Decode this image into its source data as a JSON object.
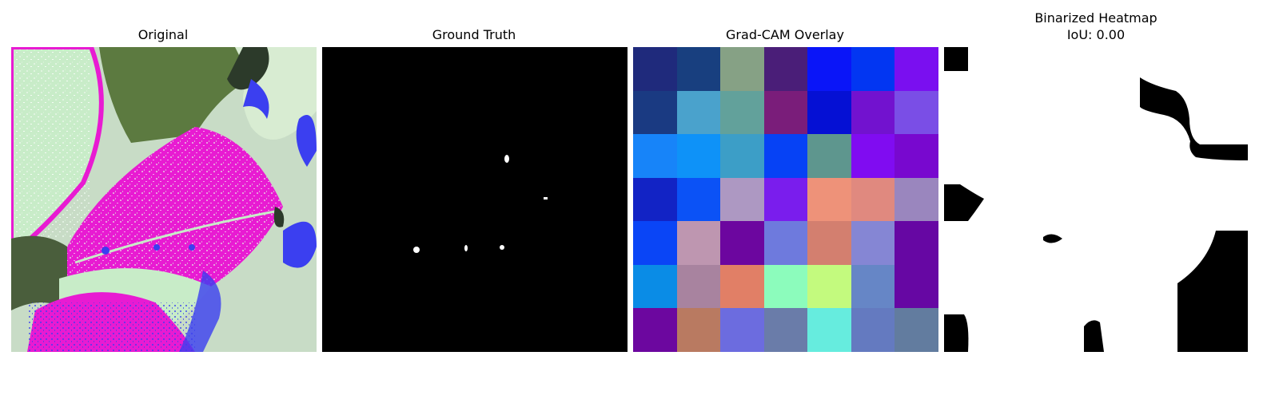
{
  "panels": [
    {
      "title": "Original"
    },
    {
      "title": "Ground Truth"
    },
    {
      "title": "Grad-CAM Overlay"
    },
    {
      "title": "Binarized Heatmap",
      "subtitle": "IoU: 0.00"
    }
  ],
  "gradcam_grid": [
    [
      "#1f2a7c",
      "#183f7f",
      "#86a185",
      "#4a1e78",
      "#0a15f8",
      "#0236f2",
      "#7a0ff0"
    ],
    [
      "#1a3a82",
      "#4aa2cc",
      "#62a19b",
      "#7a1d7a",
      "#0510d4",
      "#7212cf",
      "#7a4ee6"
    ],
    [
      "#1784f9",
      "#0e92f8",
      "#3c9ec7",
      "#0642f5",
      "#5e968e",
      "#800cf1",
      "#7808cf"
    ],
    [
      "#1223c5",
      "#0b52f6",
      "#ad98c2",
      "#7a1ded",
      "#ee9279",
      "#e0897f",
      "#9a86be"
    ],
    [
      "#0a45f6",
      "#be96b0",
      "#6c069f",
      "#6e7add",
      "#d37f6f",
      "#8586d4",
      "#6607a3"
    ],
    [
      "#0a8ce6",
      "#a8839f",
      "#e17f66",
      "#8cfcbc",
      "#c3fa7e",
      "#6686c6",
      "#6607a3"
    ],
    [
      "#6c079f",
      "#b97a61",
      "#6c6cdf",
      "#6a7ca9",
      "#66ecde",
      "#647ac0",
      "#627c9f"
    ]
  ],
  "colors": {
    "leaf_magenta": "#e81bd2",
    "leaf_pale": "#c8ecc8",
    "leaf_green": "#5c7a40",
    "rim_blue": "#3b3ff0"
  }
}
